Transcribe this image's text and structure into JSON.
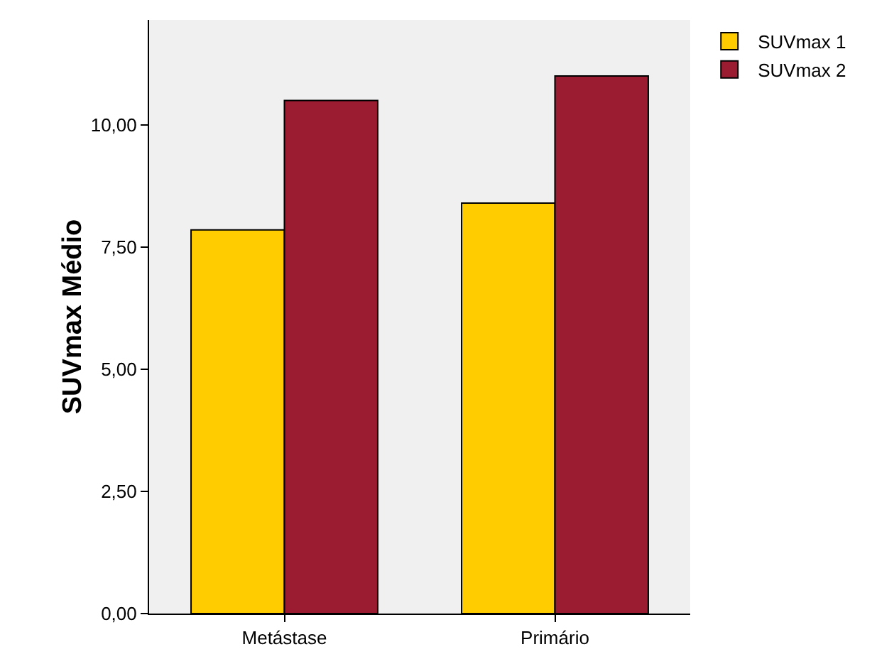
{
  "chart_data": {
    "type": "bar",
    "ylabel": "SUVmax Médio",
    "categories": [
      "Metástase",
      "Primário"
    ],
    "series": [
      {
        "name": "SUVmax 1",
        "color": "#ffcc00",
        "values": [
          7.85,
          8.4
        ]
      },
      {
        "name": "SUVmax 2",
        "color": "#9b1b30",
        "values": [
          10.5,
          11.0
        ]
      }
    ],
    "ylim": [
      0,
      12.15
    ],
    "yticks": [
      {
        "value": 0,
        "label": "0,00"
      },
      {
        "value": 2.5,
        "label": "2,50"
      },
      {
        "value": 5,
        "label": "5,00"
      },
      {
        "value": 7.5,
        "label": "7,50"
      },
      {
        "value": 10,
        "label": "10,00"
      }
    ],
    "grid": false,
    "legend": "top right"
  }
}
